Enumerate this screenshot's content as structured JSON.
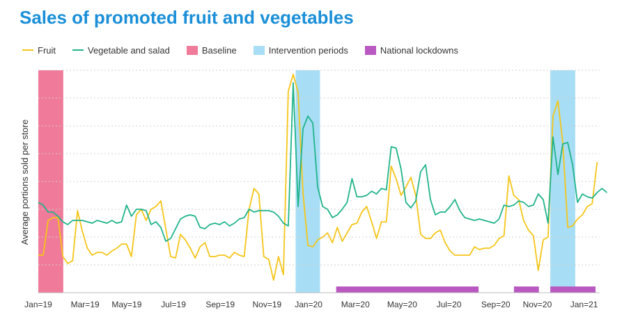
{
  "chart_data": {
    "type": "line",
    "title": "Sales of promoted fruit and vegetables",
    "xlabel": "",
    "ylabel": "Average portions sold per store",
    "x_ticks": [
      "Jan=19",
      "Mar=19",
      "May=19",
      "Jul=19",
      "Sep=19",
      "Nov=19",
      "Jan=20",
      "Mar=20",
      "May=20",
      "Jul=20",
      "Sep=20",
      "Nov=20",
      "Jan=21"
    ],
    "x_ticks_week_index": [
      0,
      9,
      17,
      26,
      35,
      44,
      52,
      61,
      70,
      79,
      88,
      96,
      105
    ],
    "x_range": [
      0,
      108
    ],
    "y_range": [
      0,
      8
    ],
    "y_grid": [
      1,
      2,
      3,
      4,
      5,
      6,
      7,
      8
    ],
    "grid": true,
    "series": [
      {
        "name": "Fruit",
        "color": "#f5c518",
        "values": [
          1.35,
          1.35,
          2.6,
          2.7,
          2.7,
          1.3,
          1.05,
          1.15,
          2.95,
          2.2,
          1.6,
          1.35,
          1.45,
          1.45,
          1.35,
          1.5,
          1.6,
          1.75,
          1.75,
          1.3,
          2.8,
          3.0,
          2.6,
          3.0,
          3.1,
          3.3,
          2.3,
          1.3,
          1.25,
          2.1,
          1.9,
          1.6,
          1.25,
          1.65,
          1.8,
          1.3,
          1.3,
          1.35,
          1.35,
          1.25,
          1.45,
          1.35,
          1.3,
          3.0,
          3.75,
          3.55,
          1.3,
          1.2,
          0.45,
          1.3,
          0.65,
          7.25,
          7.85,
          7.2,
          3.6,
          1.7,
          1.65,
          1.9,
          2.0,
          2.15,
          1.8,
          2.35,
          1.85,
          2.15,
          2.45,
          2.5,
          2.9,
          3.1,
          2.55,
          1.95,
          2.55,
          2.55,
          4.55,
          4.1,
          3.5,
          3.8,
          4.15,
          3.5,
          2.1,
          1.95,
          1.95,
          2.15,
          2.25,
          1.8,
          1.5,
          1.35,
          1.35,
          1.35,
          1.35,
          1.65,
          1.55,
          1.6,
          1.6,
          1.7,
          1.95,
          2.05,
          4.2,
          3.5,
          3.35,
          2.6,
          2.25,
          2.05,
          0.8,
          1.9,
          2.0,
          6.35,
          6.9,
          5.4,
          2.35,
          2.4,
          2.65,
          2.8,
          3.1,
          3.2,
          4.7
        ],
        "x_start": 0,
        "x_step": 0.943
      },
      {
        "name": "Vegetable and salad",
        "color": "#1fb38a",
        "values": [
          3.25,
          3.15,
          2.9,
          2.9,
          2.75,
          2.55,
          2.45,
          2.6,
          2.6,
          2.6,
          2.55,
          2.5,
          2.6,
          2.55,
          2.5,
          2.6,
          2.5,
          2.55,
          3.15,
          2.75,
          3.0,
          3.0,
          2.95,
          2.45,
          2.55,
          2.35,
          1.85,
          1.95,
          2.3,
          2.65,
          2.75,
          2.8,
          2.75,
          2.35,
          2.3,
          2.45,
          2.5,
          2.45,
          2.55,
          2.4,
          2.5,
          2.65,
          2.7,
          3.0,
          2.9,
          2.95,
          2.95,
          2.95,
          2.9,
          2.75,
          2.5,
          2.4,
          7.55,
          3.1,
          5.9,
          6.35,
          6.1,
          3.8,
          3.1,
          3.0,
          2.7,
          2.8,
          3.0,
          3.25,
          4.1,
          3.45,
          3.45,
          3.5,
          3.65,
          3.55,
          3.75,
          3.7,
          5.25,
          5.2,
          4.45,
          3.25,
          3.05,
          3.3,
          4.35,
          4.6,
          3.35,
          2.8,
          2.9,
          2.9,
          3.1,
          3.35,
          2.95,
          2.7,
          2.65,
          2.6,
          2.65,
          2.6,
          2.55,
          2.5,
          2.65,
          3.15,
          3.1,
          3.15,
          3.3,
          3.25,
          3.1,
          3.15,
          3.55,
          3.35,
          2.5,
          5.6,
          4.25,
          5.35,
          5.4,
          4.6,
          3.25,
          3.55,
          3.45,
          3.4,
          3.6,
          3.75,
          3.6
        ],
        "x_start": 0,
        "x_step": 0.943
      }
    ],
    "bands": [
      {
        "name": "Baseline",
        "color": "#f07a9a",
        "x0": 0,
        "x1": 4.8,
        "kind": "full"
      },
      {
        "name": "Intervention periods",
        "color": "#a8def5",
        "x0": 49.5,
        "x1": 54.2,
        "kind": "full"
      },
      {
        "name": "Intervention periods",
        "color": "#a8def5",
        "x0": 98.5,
        "x1": 103.3,
        "kind": "full"
      },
      {
        "name": "National lockdowns",
        "color": "#b958c1",
        "x0": 57.3,
        "x1": 84.7,
        "kind": "bottom"
      },
      {
        "name": "National lockdowns",
        "color": "#b958c1",
        "x0": 91.5,
        "x1": 96.3,
        "kind": "bottom"
      },
      {
        "name": "National lockdowns",
        "color": "#b958c1",
        "x0": 98.5,
        "x1": 107.2,
        "kind": "bottom"
      }
    ],
    "legend": [
      {
        "label": "Fruit",
        "kind": "line",
        "color": "#f5c518"
      },
      {
        "label": "Vegetable and salad",
        "kind": "line",
        "color": "#1fb38a"
      },
      {
        "label": "Baseline",
        "kind": "box",
        "color": "#f07a9a"
      },
      {
        "label": "Intervention periods",
        "kind": "box",
        "color": "#a8def5"
      },
      {
        "label": "National lockdowns",
        "kind": "box",
        "color": "#b958c1"
      }
    ],
    "legend_position": "top-left"
  }
}
